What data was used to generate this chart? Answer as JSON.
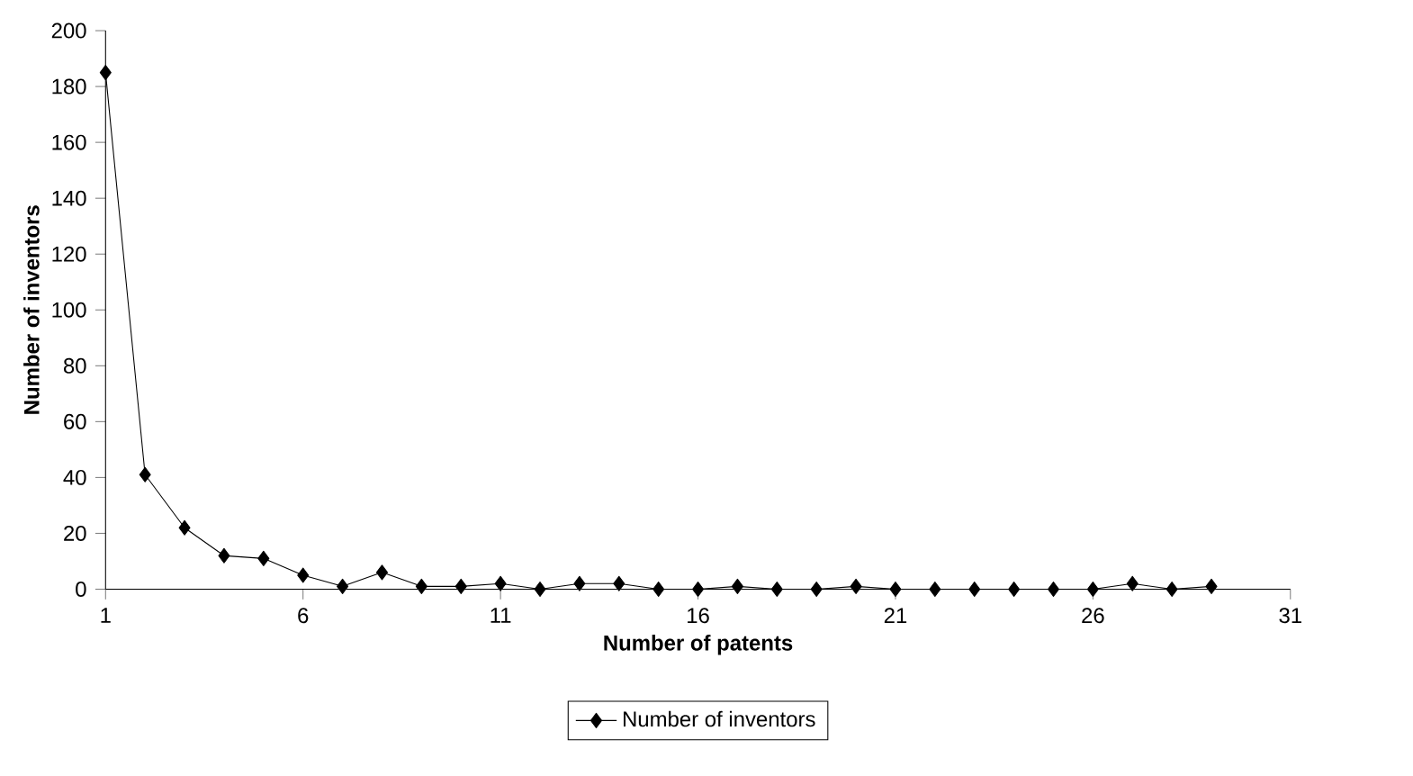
{
  "chart_data": {
    "type": "line",
    "xlabel": "Number of patents",
    "ylabel": "Number of inventors",
    "x": [
      1,
      2,
      3,
      4,
      5,
      6,
      7,
      8,
      9,
      10,
      11,
      12,
      13,
      14,
      15,
      16,
      17,
      18,
      19,
      20,
      21,
      22,
      23,
      24,
      25,
      26,
      27,
      28,
      29
    ],
    "series": [
      {
        "name": "Number of inventors",
        "color": "#000000",
        "values": [
          185,
          41,
          22,
          12,
          11,
          5,
          1,
          6,
          1,
          1,
          2,
          0,
          2,
          2,
          0,
          0,
          1,
          0,
          0,
          1,
          0,
          0,
          0,
          0,
          0,
          0,
          2,
          0,
          1
        ]
      }
    ],
    "xlim": [
      1,
      31
    ],
    "xticks": [
      1,
      6,
      11,
      16,
      21,
      26,
      31
    ],
    "ylim": [
      0,
      200
    ],
    "yticks": [
      0,
      20,
      40,
      60,
      80,
      100,
      120,
      140,
      160,
      180,
      200
    ],
    "grid": false,
    "legend": "bottom",
    "marker": "diamond",
    "line_style": "solid"
  }
}
